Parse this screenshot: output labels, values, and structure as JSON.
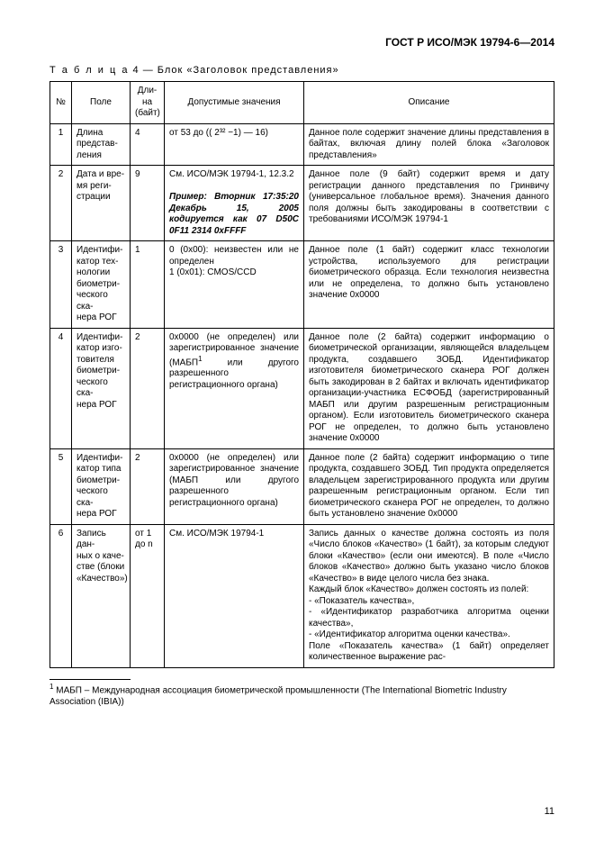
{
  "header": {
    "doc_code": "ГОСТ Р ИСО/МЭК 19794-6—2014"
  },
  "caption": {
    "label": "Т а б л и ц а",
    "num": "4",
    "dash": "—",
    "title": "Блок «Заголовок представления»"
  },
  "columns": {
    "num": "№",
    "field": "Поле",
    "len": "Дли-\nна\n(байт)",
    "allowed": "Допустимые значения",
    "desc": "Описание"
  },
  "rows": [
    {
      "num": "1",
      "field": "Длина представ-\nления",
      "len": "4",
      "allowed": "от 53 до (( 2³² −1) — 16)",
      "desc": "Данное поле содержит значение длины представления в байтах, включая длину полей блока «Заголовок представления»"
    },
    {
      "num": "2",
      "field": "Дата и вре-\nмя реги-\nстрации",
      "len": "9",
      "allowed_pre": "См. ИСО/МЭК 19794-1, 12.3.2",
      "allowed_example": "Пример: Вторник 17:35:20 Декабрь 15, 2005 кодируется как 07 D50C 0F11 2314 0xFFFF",
      "desc": "Данное поле (9 байт) содержит время и дату регистрации данного представления по Гринвичу (универсальное глобальное время). Значения данного поля должны быть закодированы в соответствии с требованиями ИСО/МЭК 19794-1"
    },
    {
      "num": "3",
      "field": "Идентифи-\nкатор тех-\nнологии биометри-\nческого ска-\nнера РОГ",
      "len": "1",
      "allowed": "0 (0x00): неизвестен или не определен\n1 (0x01): CMOS/CCD",
      "desc": "Данное поле (1 байт) содержит класс технологии устройства, используемого для регистрации биометрического образца. Если технология неизвестна или не определена, то должно быть установлено значение 0x0000"
    },
    {
      "num": "4",
      "field": "Идентифи-\nкатор изго-\nтовителя биометри-\nческого ска-\nнера РОГ",
      "len": "2",
      "allowed_html": "0x0000 (не определен) или зарегистрированное значение (МАБП<sup>1</sup> или другого разрешенного регистрационного органа)",
      "desc": "Данное поле (2 байта) содержит информацию о биометрической организации, являющейся владельцем продукта, создавшего ЗОБД. Идентификатор изготовителя биометрического сканера РОГ должен быть закодирован в 2 байтах и включать идентификатор организации-участника ЕСФОБД (зарегистрированный МАБП или другим разрешенным регистрационным органом). Если изготовитель биометрического сканера РОГ не определен, то должно быть установлено значение 0x0000"
    },
    {
      "num": "5",
      "field": "Идентифи-\nкатор типа биометри-\nческого ска-\nнера РОГ",
      "len": "2",
      "allowed": "0x0000 (не определен) или зарегистрированное значение (МАБП или другого разрешенного регистрационного органа)",
      "desc": "Данное поле (2 байта) содержит информацию о типе продукта, создавшего ЗОБД. Тип продукта определяется владельцем зарегистрированного продукта или другим разрешенным регистрационным органом. Если тип биометрического сканера РОГ не определен, то должно быть установлено значение 0x0000"
    },
    {
      "num": "6",
      "field": "Запись дан-\nных о каче-\nстве (блоки «Качество»)",
      "len": "от 1 до n",
      "allowed": "См. ИСО/МЭК 19794-1",
      "desc": "Запись данных о качестве должна состоять из поля «Число блоков «Качество» (1 байт), за которым следуют блоки «Качество» (если они имеются). В поле «Число блоков «Качество» должно быть указано число блоков «Качество» в виде целого числа без знака.\nКаждый блок «Качество» должен состоять из полей:\n- «Показатель качества»,\n- «Идентификатор разработчика алгоритма оценки качества»,\n- «Идентификатор алгоритма оценки качества».\nПоле «Показатель качества» (1 байт) определяет количественное выражение рас-"
    }
  ],
  "footnote": {
    "marker": "1",
    "text": "МАБП – Международная ассоциация биометрической промышленности (The International Biometric Industry Association (IBIA))"
  },
  "pagenum": "11"
}
